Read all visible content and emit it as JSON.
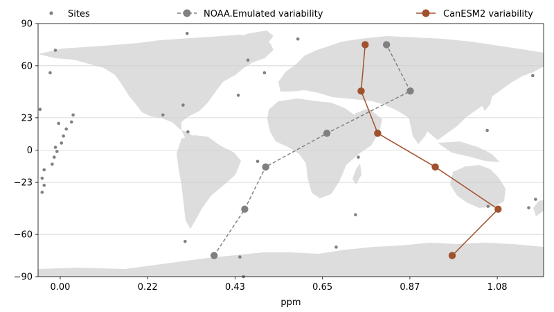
{
  "chart_data": {
    "type": "line",
    "xlabel": "ppm",
    "ylabel": "",
    "xlim": [
      -0.055,
      1.2
    ],
    "ylim": [
      -90,
      90
    ],
    "xticks": [
      "0.00",
      "0.22",
      "0.43",
      "0.65",
      "0.87",
      "1.08"
    ],
    "xtick_values": [
      0.0,
      0.217,
      0.434,
      0.651,
      0.868,
      1.085
    ],
    "yticks": [
      "90",
      "60",
      "23",
      "0",
      "−23",
      "−60",
      "−90"
    ],
    "ytick_values": [
      90,
      60,
      23,
      0,
      -23,
      -60,
      -90
    ],
    "grid": "horizontal",
    "background": "world map (land masses in light grey)",
    "legend_position": "top",
    "series": [
      {
        "name": "Sites",
        "kind": "scatter",
        "color": "#808080",
        "points": [
          [
            -0.05,
            29
          ],
          [
            -0.045,
            -30
          ],
          [
            -0.045,
            -20
          ],
          [
            -0.04,
            -14
          ],
          [
            -0.04,
            -25
          ],
          [
            -0.02,
            -10
          ],
          [
            -0.015,
            -5
          ],
          [
            -0.012,
            2
          ],
          [
            -0.008,
            -1
          ],
          [
            -0.004,
            19
          ],
          [
            0.003,
            5
          ],
          [
            0.008,
            10
          ],
          [
            0.015,
            15
          ],
          [
            0.028,
            20
          ],
          [
            0.032,
            25
          ],
          [
            -0.025,
            55
          ],
          [
            -0.012,
            71
          ],
          [
            0.255,
            25
          ],
          [
            0.305,
            32
          ],
          [
            0.317,
            13
          ],
          [
            0.31,
            -65
          ],
          [
            0.315,
            83
          ],
          [
            0.442,
            39
          ],
          [
            0.446,
            -76
          ],
          [
            0.455,
            -90
          ],
          [
            0.466,
            64
          ],
          [
            0.507,
            55
          ],
          [
            0.49,
            -8
          ],
          [
            0.59,
            79
          ],
          [
            0.685,
            -69
          ],
          [
            0.733,
            -46
          ],
          [
            0.74,
            -5
          ],
          [
            1.06,
            14
          ],
          [
            1.062,
            -40
          ],
          [
            1.163,
            -41
          ],
          [
            1.18,
            -35
          ],
          [
            1.173,
            53
          ]
        ]
      },
      {
        "name": "NOAA.Emulated variability",
        "kind": "line",
        "style": "dashed",
        "color": "#808080",
        "points": [
          [
            0.382,
            -75
          ],
          [
            0.458,
            -42
          ],
          [
            0.51,
            -12
          ],
          [
            0.662,
            12
          ],
          [
            0.869,
            42
          ],
          [
            0.81,
            75
          ]
        ]
      },
      {
        "name": "CanESM2 variability",
        "kind": "line",
        "style": "solid",
        "color": "#a0522d",
        "points": [
          [
            0.973,
            -75
          ],
          [
            1.087,
            -42
          ],
          [
            0.931,
            -12
          ],
          [
            0.788,
            12
          ],
          [
            0.747,
            42
          ],
          [
            0.757,
            75
          ]
        ]
      }
    ]
  }
}
